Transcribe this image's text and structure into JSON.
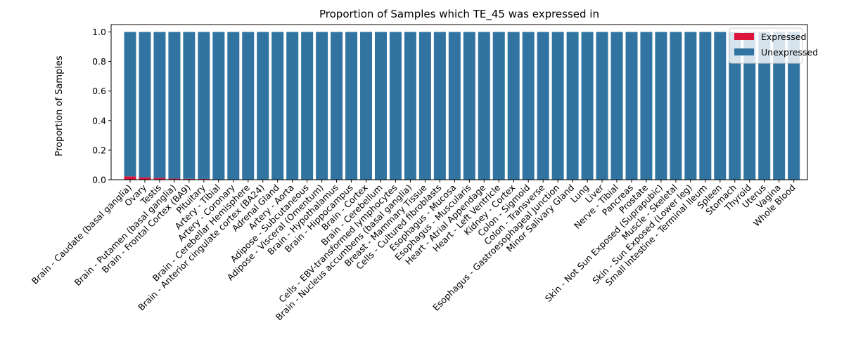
{
  "chart_data": {
    "type": "bar",
    "stacked": true,
    "title": "Proportion of Samples which TE_45 was expressed in",
    "xlabel": "",
    "ylabel": "Proportion of Samples",
    "ylim": [
      0,
      1.05
    ],
    "yticks": [
      "0.0",
      "0.2",
      "0.4",
      "0.6",
      "0.8",
      "1.0"
    ],
    "legend_position": "top-right",
    "categories": [
      "Brain - Caudate (basal ganglia)",
      "Ovary",
      "Testis",
      "Brain - Putamen (basal ganglia)",
      "Brain - Frontal Cortex (BA9)",
      "Pituitary",
      "Artery - Tibial",
      "Artery - Coronary",
      "Brain - Cerebellar Hemisphere",
      "Brain - Anterior cingulate cortex (BA24)",
      "Adrenal Gland",
      "Artery - Aorta",
      "Adipose - Subcutaneous",
      "Adipose - Visceral (Omentum)",
      "Brain - Hypothalamus",
      "Brain - Hippocampus",
      "Brain - Cortex",
      "Brain - Cerebellum",
      "Cells - EBV-transformed lymphocytes",
      "Brain - Nucleus accumbens (basal ganglia)",
      "Breast - Mammary Tissue",
      "Cells - Cultured fibroblasts",
      "Esophagus - Mucosa",
      "Esophagus - Muscularis",
      "Heart - Atrial Appendage",
      "Heart - Left Ventricle",
      "Kidney - Cortex",
      "Colon - Sigmoid",
      "Colon - Transverse",
      "Esophagus - Gastroesophageal Junction",
      "Minor Salivary Gland",
      "Lung",
      "Liver",
      "Nerve - Tibial",
      "Pancreas",
      "Prostate",
      "Skin - Not Sun Exposed (Suprapubic)",
      "Muscle - Skeletal",
      "Skin - Sun Exposed (Lower leg)",
      "Small Intestine - Terminal Ileum",
      "Spleen",
      "Stomach",
      "Thyroid",
      "Uterus",
      "Vagina",
      "Whole Blood"
    ],
    "series": [
      {
        "name": "Expressed",
        "color": "#dc143c",
        "values": [
          0.022,
          0.016,
          0.012,
          0.007,
          0.006,
          0.005,
          0,
          0,
          0,
          0,
          0,
          0,
          0,
          0,
          0,
          0,
          0,
          0,
          0,
          0,
          0,
          0,
          0,
          0,
          0,
          0,
          0,
          0,
          0,
          0,
          0,
          0,
          0,
          0,
          0,
          0,
          0,
          0,
          0,
          0,
          0,
          0,
          0,
          0,
          0,
          0
        ]
      },
      {
        "name": "Unexpressed",
        "color": "#3274a1",
        "values": [
          0.978,
          0.984,
          0.988,
          0.993,
          0.994,
          0.995,
          1,
          1,
          1,
          1,
          1,
          1,
          1,
          1,
          1,
          1,
          1,
          1,
          1,
          1,
          1,
          1,
          1,
          1,
          1,
          1,
          1,
          1,
          1,
          1,
          1,
          1,
          1,
          1,
          1,
          1,
          1,
          1,
          1,
          1,
          1,
          1,
          1,
          1,
          1,
          1
        ]
      }
    ]
  }
}
